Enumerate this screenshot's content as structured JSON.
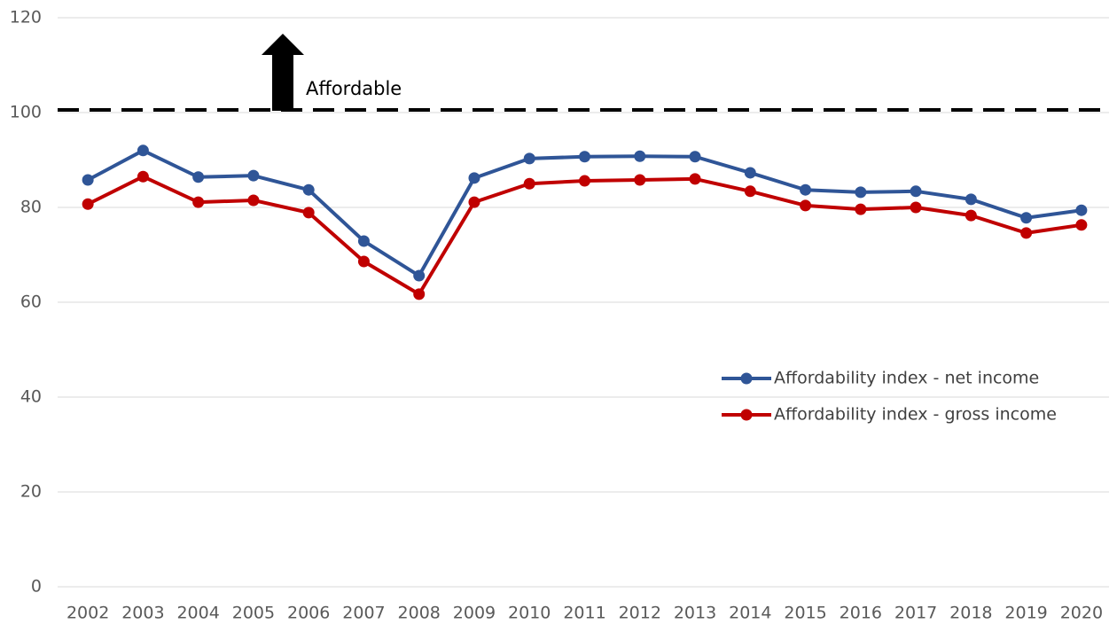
{
  "chart_data": {
    "type": "line",
    "categories": [
      "2002",
      "2003",
      "2004",
      "2005",
      "2006",
      "2007",
      "2008",
      "2009",
      "2010",
      "2011",
      "2012",
      "2013",
      "2014",
      "2015",
      "2016",
      "2017",
      "2018",
      "2019",
      "2020"
    ],
    "series": [
      {
        "name": "Affordability index - net income",
        "color": "#2f5597",
        "values": [
          85.8,
          92.0,
          86.4,
          86.7,
          83.7,
          72.9,
          65.6,
          86.2,
          90.3,
          90.7,
          90.8,
          90.7,
          87.3,
          83.7,
          83.2,
          83.4,
          81.7,
          77.8,
          79.4
        ]
      },
      {
        "name": "Affordability index - gross income",
        "color": "#c00000",
        "values": [
          80.7,
          86.5,
          81.1,
          81.5,
          78.9,
          68.6,
          61.7,
          81.1,
          85.0,
          85.6,
          85.8,
          86.0,
          83.4,
          80.4,
          79.6,
          80.0,
          78.3,
          74.6,
          76.3
        ]
      }
    ],
    "ylim": [
      0,
      120
    ],
    "yticks": [
      0,
      20,
      40,
      60,
      80,
      100,
      120
    ],
    "grid": true,
    "legend": "right",
    "reference_line": {
      "value": 100,
      "label": "Affordable"
    }
  }
}
